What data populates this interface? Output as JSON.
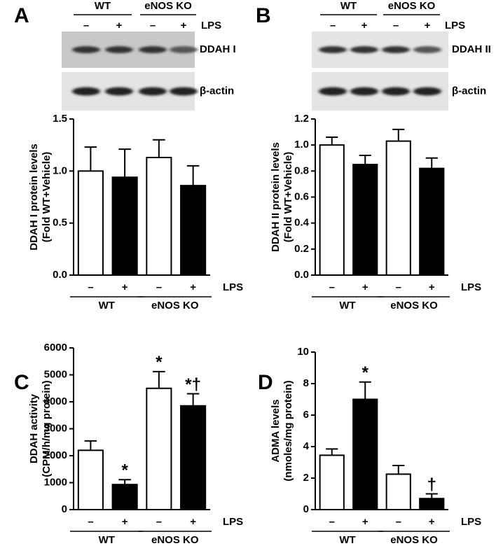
{
  "chart_data": [
    {
      "type": "bar",
      "panel": "A",
      "blot": {
        "groups": [
          "WT",
          "eNOS KO"
        ],
        "lanes": [
          "–",
          "+",
          "–",
          "+"
        ],
        "treatment": "LPS",
        "bands": [
          "DDAH I",
          "β-actin"
        ]
      },
      "ylabel": [
        "DDAH I protein levels",
        "(Fold WT+Vehicle)"
      ],
      "categories": [
        "–",
        "+",
        "–",
        "+"
      ],
      "groups": [
        "WT",
        "eNOS KO"
      ],
      "treatment": "LPS",
      "values": [
        1.0,
        0.94,
        1.13,
        0.86
      ],
      "errors": [
        0.23,
        0.27,
        0.17,
        0.19
      ],
      "colors": [
        "#ffffff",
        "#000000",
        "#ffffff",
        "#000000"
      ],
      "ylim": [
        0,
        1.5
      ],
      "yticks": [
        {
          "value": 0,
          "label": "0.0"
        },
        {
          "value": 0.5,
          "label": "0.5"
        },
        {
          "value": 1,
          "label": "1.0"
        },
        {
          "value": 1.5,
          "label": "1.5"
        }
      ]
    },
    {
      "type": "bar",
      "panel": "B",
      "blot": {
        "groups": [
          "WT",
          "eNOS KO"
        ],
        "lanes": [
          "–",
          "+",
          "–",
          "+"
        ],
        "treatment": "LPS",
        "bands": [
          "DDAH II",
          "β-actin"
        ]
      },
      "ylabel": [
        "DDAH II protein levels",
        "(Fold WT+Vehicle)"
      ],
      "categories": [
        "–",
        "+",
        "–",
        "+"
      ],
      "groups": [
        "WT",
        "eNOS KO"
      ],
      "treatment": "LPS",
      "values": [
        1.0,
        0.85,
        1.03,
        0.82
      ],
      "errors": [
        0.06,
        0.07,
        0.09,
        0.08
      ],
      "colors": [
        "#ffffff",
        "#000000",
        "#ffffff",
        "#000000"
      ],
      "ylim": [
        0,
        1.2
      ],
      "yticks": [
        {
          "value": 0,
          "label": "0.0"
        },
        {
          "value": 0.2,
          "label": "0.2"
        },
        {
          "value": 0.4,
          "label": "0.4"
        },
        {
          "value": 0.6,
          "label": "0.6"
        },
        {
          "value": 0.8,
          "label": "0.8"
        },
        {
          "value": 1,
          "label": "1.0"
        },
        {
          "value": 1.2,
          "label": "1.2"
        }
      ]
    },
    {
      "type": "bar",
      "panel": "C",
      "ylabel": [
        "DDAH activity",
        "(CPM/h/mg protein)"
      ],
      "categories": [
        "–",
        "+",
        "–",
        "+"
      ],
      "groups": [
        "WT",
        "eNOS KO"
      ],
      "treatment": "LPS",
      "values": [
        2200,
        930,
        4500,
        3850
      ],
      "errors": [
        350,
        180,
        620,
        450
      ],
      "bar_labels": [
        null,
        "*",
        "*",
        "*†"
      ],
      "colors": [
        "#ffffff",
        "#000000",
        "#ffffff",
        "#000000"
      ],
      "ylim": [
        0,
        6000
      ],
      "yticks": [
        0,
        1000,
        2000,
        3000,
        4000,
        5000,
        6000
      ]
    },
    {
      "type": "bar",
      "panel": "D",
      "ylabel": [
        "ADMA levels",
        "(nmoles/mg protein)"
      ],
      "categories": [
        "–",
        "+",
        "–",
        "+"
      ],
      "groups": [
        "WT",
        "eNOS KO"
      ],
      "treatment": "LPS",
      "values": [
        3.45,
        7.0,
        2.25,
        0.7
      ],
      "errors": [
        0.4,
        1.1,
        0.55,
        0.3
      ],
      "bar_labels": [
        null,
        "*",
        null,
        "†"
      ],
      "colors": [
        "#ffffff",
        "#000000",
        "#ffffff",
        "#000000"
      ],
      "ylim": [
        0,
        10
      ],
      "yticks": [
        0,
        2,
        4,
        6,
        8,
        10
      ]
    }
  ]
}
